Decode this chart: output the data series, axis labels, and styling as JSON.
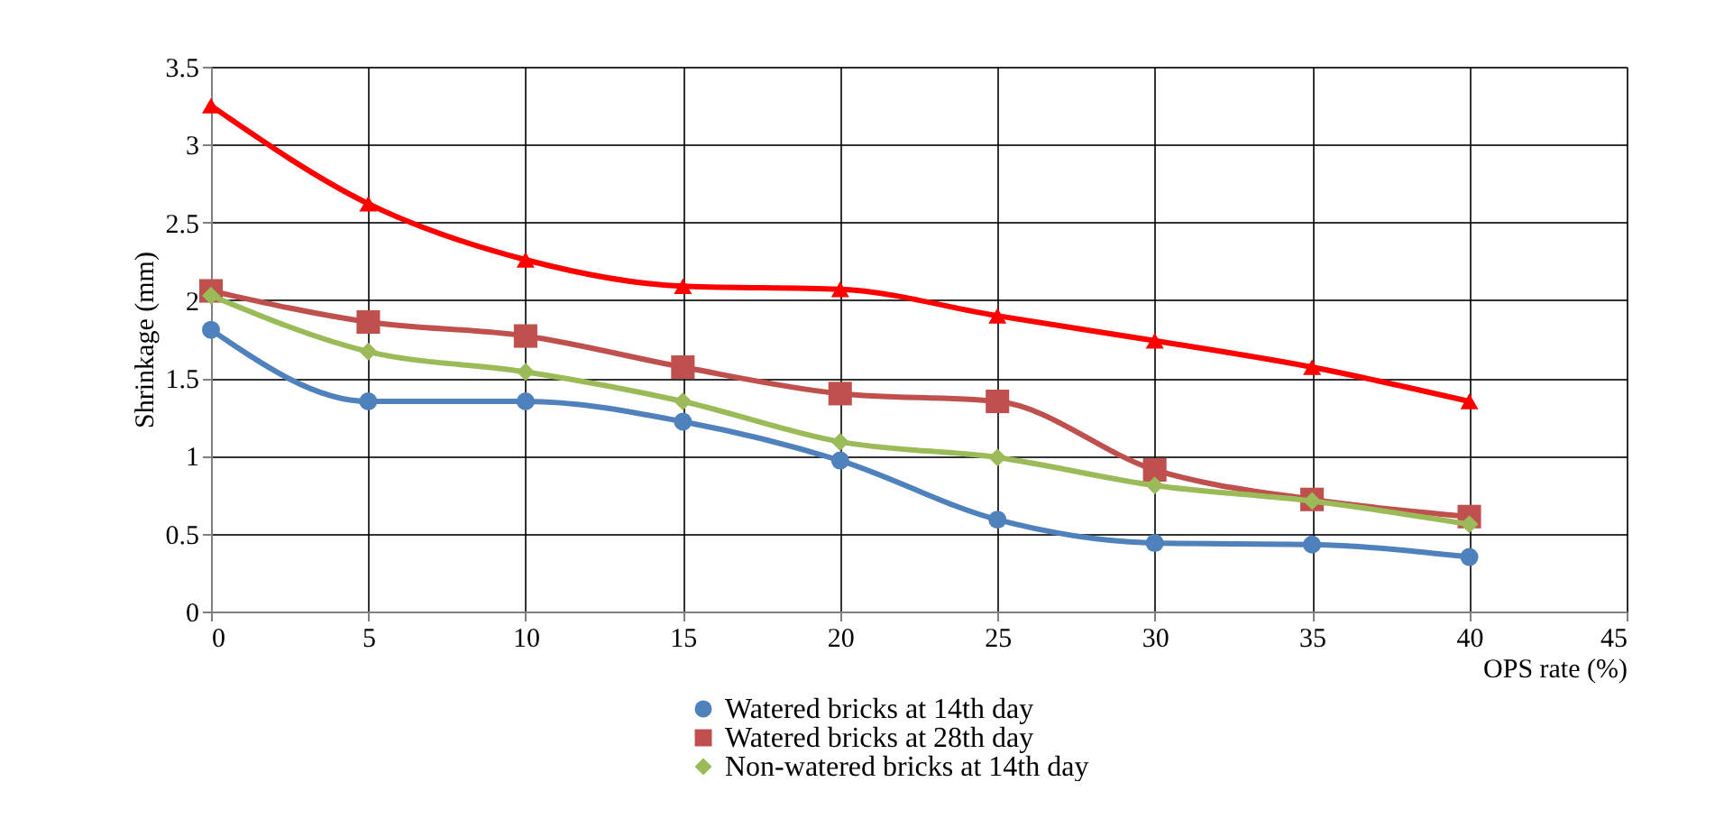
{
  "chart_data": {
    "type": "line",
    "xlabel": "OPS rate (%)",
    "ylabel": "Shrinkage (mm)",
    "x": [
      0,
      5,
      10,
      15,
      20,
      25,
      30,
      35,
      40
    ],
    "series": [
      {
        "name": "Watered bricks at 14th day",
        "color": "#4f81bd",
        "marker": "circle",
        "values": [
          1.81,
          1.35,
          1.35,
          1.22,
          0.97,
          0.59,
          0.44,
          0.43,
          0.35
        ]
      },
      {
        "name": "Watered bricks at 28th day",
        "color": "#c0504d",
        "marker": "square",
        "values": [
          2.06,
          1.86,
          1.77,
          1.57,
          1.4,
          1.35,
          0.91,
          0.72,
          0.61
        ]
      },
      {
        "name": "Non-watered bricks at 14th day",
        "color": "#9bbb59",
        "marker": "diamond",
        "values": [
          2.03,
          1.67,
          1.54,
          1.35,
          1.09,
          0.99,
          0.81,
          0.71,
          0.56
        ]
      },
      {
        "color": "#ff0000",
        "marker": "triangle",
        "values": [
          3.25,
          2.62,
          2.26,
          2.09,
          2.07,
          1.9,
          1.74,
          1.57,
          1.35
        ]
      }
    ],
    "xlim": [
      0,
      45
    ],
    "xticks": [
      0,
      5,
      10,
      15,
      20,
      25,
      30,
      35,
      40,
      45
    ],
    "ylim": [
      0,
      3.5
    ],
    "yticks": [
      0,
      0.5,
      1,
      1.5,
      2,
      2.5,
      3,
      3.5
    ],
    "grid": true,
    "legend": "bottom",
    "line_style": "solid"
  }
}
